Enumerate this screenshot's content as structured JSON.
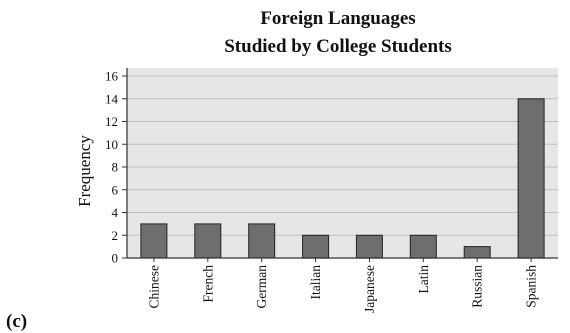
{
  "panel_label": "(c)",
  "chart_data": {
    "type": "bar",
    "title_lines": [
      "Foreign Languages",
      "Studied by College Students"
    ],
    "xlabel": "",
    "ylabel": "Frequency",
    "categories": [
      "Chinese",
      "French",
      "German",
      "Italian",
      "Japanese",
      "Latin",
      "Russian",
      "Spanish"
    ],
    "values": [
      3,
      3,
      3,
      2,
      2,
      2,
      1,
      14
    ],
    "ylim": [
      0,
      16
    ],
    "yticks": [
      0,
      2,
      4,
      6,
      8,
      10,
      12,
      14,
      16
    ],
    "grid": true,
    "colors": {
      "plot_background": "#e6e6e6",
      "bar_fill": "#6e6e6e",
      "bar_stroke": "#222222",
      "grid": "#bdbdbd",
      "axis": "#333333"
    }
  }
}
